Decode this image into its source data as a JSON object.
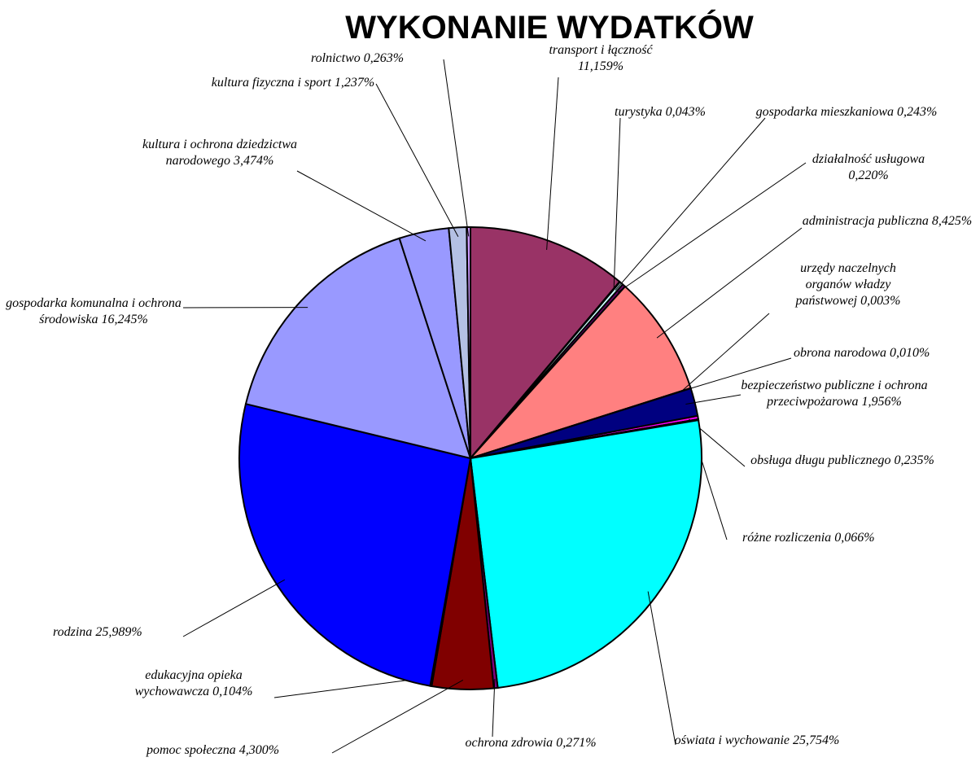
{
  "chart_data": {
    "type": "pie",
    "title": "WYKONANIE WYDATKÓW",
    "categories": [
      "transport i łączność",
      "turystyka",
      "gospodarka mieszkaniowa",
      "działalność usługowa",
      "administracja publiczna",
      "urzędy naczelnych organów władzy państwowej",
      "obrona narodowa",
      "bezpieczeństwo publiczne i ochrona przeciwpożarowa",
      "obsługa długu publicznego",
      "różne rozliczenia",
      "oświata i wychowanie",
      "ochrona zdrowia",
      "pomoc społeczna",
      "edukacyjna opieka wychowawcza",
      "rodzina",
      "gospodarka komunalna i ochrona środowiska",
      "kultura i ochrona dziedzictwa narodowego",
      "kultura fizyczna i sport",
      "rolnictwo"
    ],
    "values": [
      11.159,
      0.043,
      0.243,
      0.22,
      8.425,
      0.003,
      0.01,
      1.956,
      0.235,
      0.066,
      25.754,
      0.271,
      4.3,
      0.104,
      25.989,
      16.245,
      3.474,
      1.237,
      0.263
    ],
    "value_labels": [
      "11,159%",
      "0,043%",
      "0,243%",
      "0,220%",
      "8,425%",
      "0,003%",
      "0,010%",
      "1,956%",
      "0,235%",
      "0,066%",
      "25,754%",
      "0,271%",
      "4,300%",
      "0,104%",
      "25,989%",
      "16,245%",
      "3,474%",
      "1,237%",
      "0,263%"
    ],
    "colors": [
      "#993366",
      "#ffffcc",
      "#ccffff",
      "#660066",
      "#ff8080",
      "#0066cc",
      "#ccccff",
      "#000080",
      "#ff00ff",
      "#ffff00",
      "#00ffff",
      "#800080",
      "#800000",
      "#008080",
      "#0000ff",
      "#9999ff",
      "#9999ff",
      "#b4c0e4",
      "#cc99ff"
    ]
  }
}
